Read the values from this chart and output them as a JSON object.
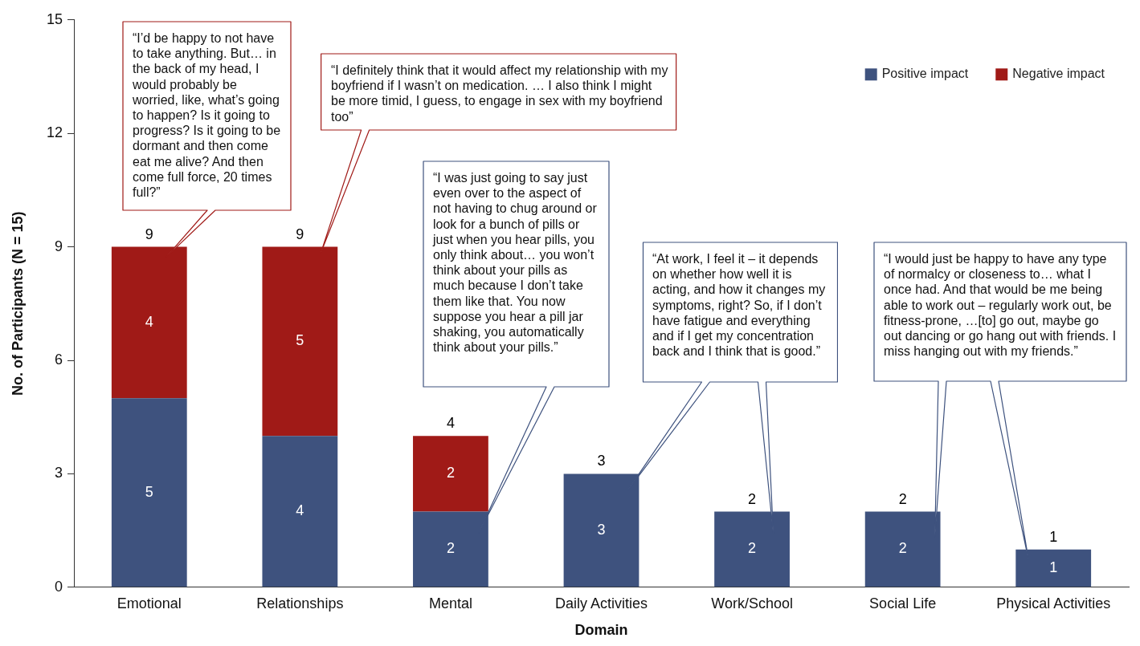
{
  "chart_data": {
    "type": "bar",
    "stacked": true,
    "xlabel": "Domain",
    "ylabel": "No. of Participants (N = 15)",
    "categories": [
      "Emotional",
      "Relationships",
      "Mental",
      "Daily Activities",
      "Work/School",
      "Social Life",
      "Physical Activities"
    ],
    "series": [
      {
        "name": "Positive impact",
        "color": "#3e527e",
        "values": [
          5,
          4,
          2,
          3,
          2,
          2,
          1
        ]
      },
      {
        "name": "Negative impact",
        "color": "#a01a17",
        "values": [
          4,
          5,
          2,
          null,
          null,
          null,
          null
        ]
      }
    ],
    "ylim": [
      0,
      15
    ],
    "yticks": [
      0,
      3,
      6,
      9,
      12,
      15
    ],
    "grid": false,
    "legend": "top right",
    "data_labels": true,
    "totals": [
      "9",
      "9",
      "4",
      "3",
      "2",
      "2",
      "1"
    ],
    "annotations": [
      "“I’d be happy to not have to take anything. But… in the back of my head, I would probably be worried, like, what’s going to happen? Is it going to progress? Is it going to be dormant and then come eat me alive? And then come full force, 20 times full?”",
      "“I definitely think that it would affect my relationship with my boyfriend if I wasn’t on medication. … I also think I might be more timid, I guess, to engage in sex with my boyfriend too”",
      "“I was just going to say just even over to the aspect of not having to chug around or look for a bunch of pills or just when you hear pills, you only think about… you won’t think about your pills as much because I don’t take them like that. You now suppose you hear a pill jar shaking, you automatically think about your pills.”",
      "“At work, I feel it – it depends on whether how well it is acting, and how it changes my symptoms, right? So, if I don’t have fatigue and everything and if I get my concentration back and I think that is good.”",
      "“I would just be happy to have any type of normalcy or closeness to… what I once had. And that would be me being able to work out – regularly work out, be fitness-prone, …[to] go out, maybe go out dancing or go hang out with friends. I miss hanging out with my friends.”"
    ]
  }
}
